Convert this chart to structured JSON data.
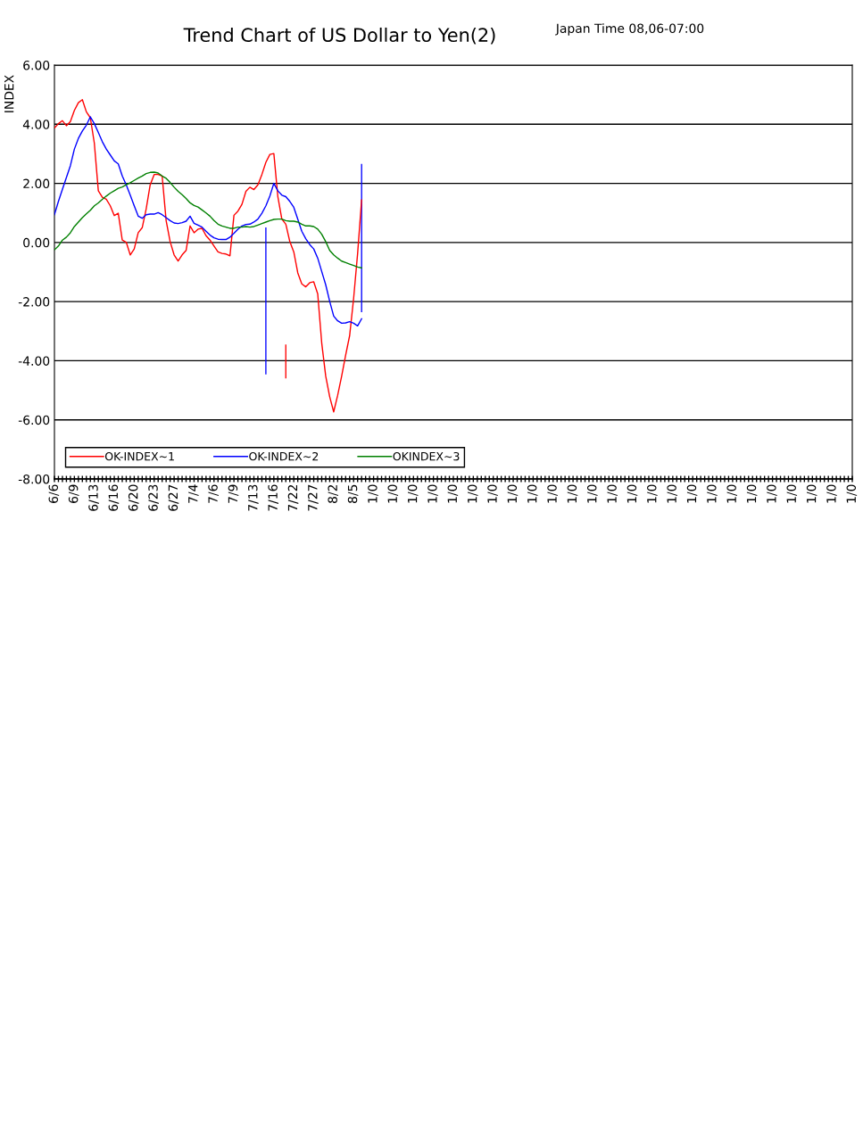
{
  "chart_data": {
    "type": "line",
    "title": "Trend Chart of US Dollar to Yen(2)",
    "ylabel": "INDEX",
    "annotations": [
      "Japan Time 08,06-07:00"
    ],
    "categories": [
      "6/6",
      null,
      null,
      null,
      null,
      "6/9",
      null,
      null,
      null,
      null,
      "6/13",
      null,
      null,
      null,
      null,
      "6/16",
      null,
      null,
      null,
      null,
      "6/20",
      null,
      null,
      null,
      null,
      "6/23",
      null,
      null,
      null,
      null,
      "6/27",
      null,
      null,
      null,
      null,
      "7/4",
      null,
      null,
      null,
      null,
      "7/6",
      null,
      null,
      null,
      null,
      "7/9",
      null,
      null,
      null,
      null,
      "7/13",
      null,
      null,
      null,
      null,
      "7/16",
      null,
      null,
      null,
      null,
      "7/22",
      null,
      null,
      null,
      null,
      "7/27",
      null,
      null,
      null,
      null,
      "8/2",
      null,
      null,
      null,
      null,
      "8/5",
      null,
      null,
      null,
      null,
      "1/0",
      null,
      null,
      null,
      null,
      "1/0",
      null,
      null,
      null,
      null,
      "1/0",
      null,
      null,
      null,
      null,
      "1/0",
      null,
      null,
      null,
      null,
      "1/0",
      null,
      null,
      null,
      null,
      "1/0",
      null,
      null,
      null,
      null,
      "1/0",
      null,
      null,
      null,
      null,
      "1/0",
      null,
      null,
      null,
      null,
      "1/0",
      null,
      null,
      null,
      null,
      "1/0",
      null,
      null,
      null,
      null,
      "1/0",
      null,
      null,
      null,
      null,
      "1/0",
      null,
      null,
      null,
      null,
      "1/0",
      null,
      null,
      null,
      null,
      "1/0",
      null,
      null,
      null,
      null,
      "1/0",
      null,
      null,
      null,
      null,
      "1/0",
      null,
      null,
      null,
      null,
      "1/0",
      null,
      null,
      null,
      null,
      "1/0",
      null,
      null,
      null,
      null,
      "1/0",
      null,
      null,
      null,
      null,
      "1/0",
      null,
      null,
      null,
      null,
      "1/0",
      null,
      null,
      null,
      null,
      "1/0",
      null,
      null,
      null,
      null,
      "1/0",
      null,
      null,
      null,
      null,
      "1/0",
      null,
      null,
      null,
      null,
      "1/0"
    ],
    "series": [
      {
        "name": "OK-INDEX~1",
        "color": "#ff0000",
        "values": [
          3.87,
          4.02,
          4.12,
          3.95,
          4.09,
          4.47,
          4.73,
          4.83,
          4.42,
          4.22,
          3.36,
          1.75,
          1.53,
          1.46,
          1.24,
          0.91,
          0.99,
          0.08,
          0.01,
          -0.42,
          -0.22,
          0.33,
          0.5,
          1.14,
          1.95,
          2.3,
          2.3,
          2.25,
          0.74,
          0.03,
          -0.42,
          -0.63,
          -0.42,
          -0.27,
          0.56,
          0.33,
          0.45,
          0.48,
          0.23,
          0.08,
          -0.12,
          -0.32,
          -0.37,
          -0.39,
          -0.45,
          0.92,
          1.06,
          1.29,
          1.73,
          1.87,
          1.79,
          1.95,
          2.3,
          2.71,
          2.98,
          3.01,
          1.55,
          0.79,
          0.62,
          0.03,
          -0.32,
          -1.03,
          -1.4,
          -1.5,
          -1.36,
          -1.33,
          -1.74,
          -3.4,
          -4.52,
          -5.22,
          -5.73,
          -5.17,
          -4.52,
          -3.81,
          -3.15,
          -1.89,
          -0.37,
          1.44,
          null,
          null,
          null,
          null,
          null,
          null,
          null,
          null,
          null,
          null,
          null,
          null,
          null,
          null,
          null,
          null,
          null,
          null,
          null,
          null,
          null,
          null,
          null,
          null,
          null,
          null,
          null,
          null,
          null,
          null,
          null,
          null,
          null,
          null,
          null,
          null,
          null,
          null,
          null,
          null,
          null,
          null,
          null,
          null,
          null,
          null,
          null,
          null,
          null,
          null,
          null,
          null,
          null,
          null,
          null,
          null,
          null,
          null,
          null,
          null,
          null,
          null,
          null,
          null,
          null,
          null,
          null,
          null,
          null,
          null,
          null,
          null,
          null,
          null,
          null,
          null,
          null,
          null,
          null,
          null,
          null,
          null,
          null,
          null,
          null,
          null,
          null,
          null,
          null,
          null,
          null,
          null,
          null,
          null,
          null,
          null,
          null,
          null,
          null,
          null,
          null,
          null,
          null,
          null,
          null,
          null,
          null,
          null,
          null,
          null,
          null,
          null,
          null,
          null,
          null,
          null,
          null,
          null,
          null,
          null,
          null,
          null,
          null
        ]
      },
      {
        "name": "OK-INDEX~2",
        "color": "#0000ff",
        "values": [
          0.94,
          1.39,
          1.8,
          2.2,
          2.6,
          3.16,
          3.52,
          3.77,
          3.97,
          4.25,
          4.02,
          3.72,
          3.41,
          3.16,
          2.96,
          2.76,
          2.66,
          2.25,
          1.95,
          1.6,
          1.24,
          0.89,
          0.82,
          0.94,
          0.96,
          0.96,
          1.01,
          0.94,
          0.84,
          0.74,
          0.66,
          0.64,
          0.67,
          0.72,
          0.89,
          0.65,
          0.59,
          0.52,
          0.38,
          0.25,
          0.16,
          0.11,
          0.1,
          0.1,
          0.18,
          0.31,
          0.45,
          0.56,
          0.61,
          0.62,
          0.69,
          0.79,
          0.99,
          1.24,
          1.57,
          2.0,
          1.75,
          1.6,
          1.55,
          1.39,
          1.19,
          0.79,
          0.38,
          0.13,
          -0.07,
          -0.22,
          -0.53,
          -0.98,
          -1.43,
          -1.99,
          -2.49,
          -2.65,
          -2.73,
          -2.72,
          -2.68,
          -2.73,
          -2.82,
          -2.58,
          null,
          null,
          null,
          null,
          null,
          null,
          null,
          null,
          null,
          null,
          null,
          null,
          null,
          null,
          null,
          null,
          null,
          null,
          null,
          null,
          null,
          null,
          null,
          null,
          null,
          null,
          null,
          null,
          null,
          null,
          null,
          null,
          null,
          null,
          null,
          null,
          null,
          null,
          null,
          null,
          null,
          null,
          null,
          null,
          null,
          null,
          null,
          null,
          null,
          null,
          null,
          null,
          null,
          null,
          null,
          null,
          null,
          null,
          null,
          null,
          null,
          null,
          null,
          null,
          null,
          null,
          null,
          null,
          null,
          null,
          null,
          null,
          null,
          null,
          null,
          null,
          null,
          null,
          null,
          null,
          null,
          null,
          null,
          null,
          null,
          null,
          null,
          null,
          null,
          null,
          null,
          null,
          null,
          null,
          null,
          null,
          null,
          null,
          null,
          null,
          null,
          null,
          null,
          null,
          null,
          null,
          null,
          null,
          null,
          null,
          null,
          null,
          null,
          null,
          null,
          null,
          null,
          null,
          null,
          null,
          null,
          null,
          null
        ]
      },
      {
        "name": "OKINDEX~3",
        "color": "#008000",
        "values": [
          -0.25,
          -0.12,
          0.08,
          0.18,
          0.33,
          0.54,
          0.69,
          0.84,
          0.97,
          1.09,
          1.24,
          1.34,
          1.46,
          1.57,
          1.67,
          1.75,
          1.83,
          1.88,
          1.95,
          2.02,
          2.1,
          2.18,
          2.25,
          2.33,
          2.37,
          2.38,
          2.35,
          2.25,
          2.17,
          2.03,
          1.87,
          1.73,
          1.62,
          1.49,
          1.34,
          1.25,
          1.2,
          1.1,
          1.0,
          0.89,
          0.74,
          0.62,
          0.56,
          0.52,
          0.48,
          0.48,
          0.52,
          0.52,
          0.54,
          0.52,
          0.54,
          0.59,
          0.64,
          0.69,
          0.74,
          0.78,
          0.79,
          0.79,
          0.74,
          0.72,
          0.72,
          0.69,
          0.62,
          0.56,
          0.56,
          0.54,
          0.45,
          0.28,
          0.03,
          -0.27,
          -0.42,
          -0.53,
          -0.63,
          -0.68,
          -0.73,
          -0.78,
          -0.83,
          -0.86,
          null,
          null,
          null,
          null,
          null,
          null,
          null,
          null,
          null,
          null,
          null,
          null,
          null,
          null,
          null,
          null,
          null,
          null,
          null,
          null,
          null,
          null,
          null,
          null,
          null,
          null,
          null,
          null,
          null,
          null,
          null,
          null,
          null,
          null,
          null,
          null,
          null,
          null,
          null,
          null,
          null,
          null,
          null,
          null,
          null,
          null,
          null,
          null,
          null,
          null,
          null,
          null,
          null,
          null,
          null,
          null,
          null,
          null,
          null,
          null,
          null,
          null,
          null,
          null,
          null,
          null,
          null,
          null,
          null,
          null,
          null,
          null,
          null,
          null,
          null,
          null,
          null,
          null,
          null,
          null,
          null,
          null,
          null,
          null,
          null,
          null,
          null,
          null,
          null,
          null,
          null,
          null,
          null,
          null,
          null,
          null,
          null,
          null,
          null,
          null,
          null,
          null,
          null,
          null,
          null,
          null,
          null,
          null,
          null,
          null,
          null,
          null,
          null,
          null,
          null,
          null,
          null,
          null,
          null,
          null,
          null,
          null,
          null
        ]
      },
      {
        "type": "bar",
        "color": "#0000ff",
        "values": [
          null,
          null,
          null,
          null,
          null,
          null,
          null,
          null,
          null,
          null,
          null,
          null,
          null,
          null,
          null,
          null,
          null,
          null,
          null,
          null,
          null,
          null,
          null,
          null,
          null,
          null,
          null,
          null,
          null,
          null,
          null,
          null,
          null,
          null,
          null,
          null,
          null,
          null,
          null,
          null,
          null,
          null,
          null,
          null,
          null,
          null,
          null,
          null,
          null,
          null,
          null,
          null,
          null,
          4.97,
          null,
          null,
          null,
          null,
          null,
          null,
          null,
          null,
          null,
          null,
          null,
          null,
          null,
          null,
          null,
          null,
          null,
          null,
          null,
          null,
          null,
          null,
          null,
          5.02,
          null,
          null,
          null,
          null,
          null,
          null,
          null,
          null,
          null,
          null,
          null,
          null,
          null,
          null,
          null,
          null,
          null,
          null,
          null,
          null,
          null,
          null,
          null,
          null,
          null,
          null,
          null,
          null,
          null,
          null,
          null,
          null,
          null,
          null,
          null,
          null,
          null,
          null,
          null,
          null,
          null,
          null,
          null,
          null,
          null,
          null,
          null,
          null,
          null,
          null,
          null,
          null,
          null,
          null,
          null,
          null,
          null,
          null,
          null,
          null,
          null,
          null,
          null,
          null,
          null,
          null,
          null,
          null,
          null,
          null,
          null,
          null,
          null,
          null,
          null,
          null,
          null,
          null,
          null,
          null,
          null,
          null,
          null,
          null,
          null,
          null,
          null,
          null,
          null,
          null,
          null,
          null,
          null,
          null,
          null,
          null,
          null,
          null,
          null,
          null,
          null,
          null,
          null,
          null,
          null,
          null,
          null,
          null,
          null,
          null,
          null,
          null,
          null,
          null,
          null,
          null,
          null,
          null,
          null,
          null,
          null,
          null,
          null
        ],
        "base": [
          null,
          null,
          null,
          null,
          null,
          null,
          null,
          null,
          null,
          null,
          null,
          null,
          null,
          null,
          null,
          null,
          null,
          null,
          null,
          null,
          null,
          null,
          null,
          null,
          null,
          null,
          null,
          null,
          null,
          null,
          null,
          null,
          null,
          null,
          null,
          null,
          null,
          null,
          null,
          null,
          null,
          null,
          null,
          null,
          null,
          null,
          null,
          null,
          null,
          null,
          null,
          null,
          null,
          -4.46,
          null,
          null,
          null,
          null,
          null,
          null,
          null,
          null,
          null,
          null,
          null,
          null,
          null,
          null,
          null,
          null,
          null,
          null,
          null,
          null,
          null,
          null,
          null,
          -2.36,
          null,
          null,
          null,
          null,
          null,
          null,
          null,
          null,
          null,
          null,
          null,
          null,
          null,
          null,
          null,
          null,
          null,
          null,
          null,
          null,
          null,
          null,
          null,
          null,
          null,
          null,
          null,
          null,
          null,
          null,
          null,
          null,
          null,
          null,
          null,
          null,
          null,
          null,
          null,
          null,
          null,
          null,
          null,
          null,
          null,
          null,
          null,
          null,
          null,
          null,
          null,
          null,
          null,
          null,
          null,
          null,
          null,
          null,
          null,
          null,
          null,
          null,
          null,
          null,
          null,
          null,
          null,
          null,
          null,
          null,
          null,
          null,
          null,
          null,
          null,
          null,
          null,
          null,
          null,
          null,
          null,
          null,
          null,
          null,
          null,
          null,
          null,
          null,
          null,
          null,
          null,
          null,
          null,
          null,
          null,
          null,
          null,
          null,
          null,
          null,
          null,
          null,
          null,
          null,
          null,
          null,
          null,
          null,
          null,
          null,
          null,
          null,
          null,
          null,
          null,
          null,
          null,
          null,
          null,
          null,
          null,
          null,
          null
        ]
      },
      {
        "type": "bar",
        "color": "#ff0000",
        "values": [
          null,
          null,
          null,
          null,
          null,
          null,
          null,
          null,
          null,
          null,
          null,
          null,
          null,
          null,
          null,
          null,
          null,
          null,
          null,
          null,
          null,
          null,
          null,
          null,
          null,
          null,
          null,
          null,
          null,
          null,
          null,
          null,
          null,
          null,
          null,
          null,
          null,
          null,
          null,
          null,
          null,
          null,
          null,
          null,
          null,
          null,
          null,
          null,
          null,
          null,
          null,
          null,
          null,
          null,
          null,
          null,
          null,
          null,
          1.15,
          null,
          null,
          null,
          null,
          null,
          null,
          null,
          null,
          null,
          null,
          null,
          null,
          null,
          null,
          null,
          null,
          null,
          null,
          null,
          null,
          null,
          null,
          null,
          null,
          null,
          null,
          null,
          null,
          null,
          null,
          null,
          null,
          null,
          null,
          null,
          null,
          null,
          null,
          null,
          null,
          null,
          null,
          null,
          null,
          null,
          null,
          null,
          null,
          null,
          null,
          null,
          null,
          null,
          null,
          null,
          null,
          null,
          null,
          null,
          null,
          null,
          null,
          null,
          null,
          null,
          null,
          null,
          null,
          null,
          null,
          null,
          null,
          null,
          null,
          null,
          null,
          null,
          null,
          null,
          null,
          null,
          null,
          null,
          null,
          null,
          null,
          null,
          null,
          null,
          null,
          null,
          null,
          null,
          null,
          null,
          null,
          null,
          null,
          null,
          null,
          null,
          null,
          null,
          null,
          null,
          null,
          null,
          null,
          null,
          null,
          null,
          null,
          null,
          null,
          null,
          null,
          null,
          null,
          null,
          null,
          null,
          null,
          null,
          null,
          null,
          null,
          null,
          null,
          null,
          null,
          null,
          null,
          null,
          null,
          null,
          null,
          null,
          null,
          null,
          null,
          null,
          null
        ],
        "base": [
          null,
          null,
          null,
          null,
          null,
          null,
          null,
          null,
          null,
          null,
          null,
          null,
          null,
          null,
          null,
          null,
          null,
          null,
          null,
          null,
          null,
          null,
          null,
          null,
          null,
          null,
          null,
          null,
          null,
          null,
          null,
          null,
          null,
          null,
          null,
          null,
          null,
          null,
          null,
          null,
          null,
          null,
          null,
          null,
          null,
          null,
          null,
          null,
          null,
          null,
          null,
          null,
          null,
          null,
          null,
          null,
          null,
          null,
          -4.6,
          null,
          null,
          null,
          null,
          null,
          null,
          null,
          null,
          null,
          null,
          null,
          null,
          null,
          null,
          null,
          null,
          null,
          null,
          null,
          null,
          null,
          null,
          null,
          null,
          null,
          null,
          null,
          null,
          null,
          null,
          null,
          null,
          null,
          null,
          null,
          null,
          null,
          null,
          null,
          null,
          null,
          null,
          null,
          null,
          null,
          null,
          null,
          null,
          null,
          null,
          null,
          null,
          null,
          null,
          null,
          null,
          null,
          null,
          null,
          null,
          null,
          null,
          null,
          null,
          null,
          null,
          null,
          null,
          null,
          null,
          null,
          null,
          null,
          null,
          null,
          null,
          null,
          null,
          null,
          null,
          null,
          null,
          null,
          null,
          null,
          null,
          null,
          null,
          null,
          null,
          null,
          null,
          null,
          null,
          null,
          null,
          null,
          null,
          null,
          null,
          null,
          null,
          null,
          null,
          null,
          null,
          null,
          null,
          null,
          null,
          null,
          null,
          null,
          null,
          null,
          null,
          null,
          null,
          null,
          null,
          null,
          null,
          null,
          null,
          null,
          null,
          null,
          null,
          null,
          null,
          null,
          null,
          null,
          null,
          null,
          null,
          null,
          null,
          null,
          null,
          null,
          null
        ]
      }
    ],
    "ylim": [
      -8,
      6
    ],
    "yticks": [
      {
        "value": -8,
        "label": "-8.00"
      },
      {
        "value": -6,
        "label": "-6.00"
      },
      {
        "value": -4,
        "label": "-4.00"
      },
      {
        "value": -2,
        "label": "-2.00"
      },
      {
        "value": 0,
        "label": "0.00"
      },
      {
        "value": 2,
        "label": "2.00"
      },
      {
        "value": 4,
        "label": "4.00"
      },
      {
        "value": 6,
        "label": "6.00"
      }
    ],
    "grid": "y",
    "legend": "bottom left",
    "marker": "none",
    "line_style": "solid"
  }
}
